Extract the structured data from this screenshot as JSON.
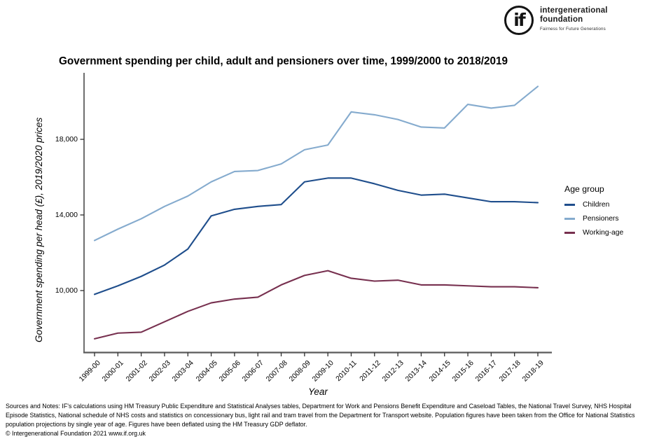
{
  "header": {
    "logo": {
      "monogram": "if",
      "line1": "intergenerational",
      "line2": "foundation",
      "tagline": "Fairness for Future Generations"
    }
  },
  "title": "Government spending per child, adult and pensioners over time, 1999/2000 to 2018/2019",
  "chart_data": {
    "type": "line",
    "title": "Government spending per child, adult and pensioners over time, 1999/2000 to 2018/2019",
    "xlabel": "Year",
    "ylabel": "Government spending per head (£), 2019/2020 prices",
    "categories": [
      "1999-00",
      "2000-01",
      "2001-02",
      "2002-03",
      "2003-04",
      "2004-05",
      "2005-06",
      "2006-07",
      "2007-08",
      "2008-09",
      "2009-10",
      "2010-11",
      "2011-12",
      "2012-13",
      "2013-14",
      "2014-15",
      "2015-16",
      "2016-17",
      "2017-18",
      "2018-19"
    ],
    "y_ticks": [
      10000,
      14000,
      18000
    ],
    "y_tick_labels": [
      "10,000",
      "14,000",
      "18,000"
    ],
    "ylim": [
      6700,
      21300
    ],
    "grid": false,
    "legend_title": "Age group",
    "legend_position": "right",
    "axis_color": "#3a3a3a",
    "series": [
      {
        "name": "Children",
        "color": "#1f4e8c",
        "values": [
          9800,
          10250,
          10750,
          11350,
          12200,
          13950,
          14300,
          14450,
          14550,
          15750,
          15950,
          15950,
          15650,
          15300,
          15050,
          15100,
          14900,
          14700,
          14700,
          14650
        ]
      },
      {
        "name": "Pensioners",
        "color": "#85abce",
        "values": [
          12650,
          13250,
          13800,
          14450,
          15000,
          15750,
          16300,
          16350,
          16700,
          17450,
          17700,
          19450,
          19300,
          19050,
          18650,
          18600,
          19850,
          19650,
          19800,
          20800
        ]
      },
      {
        "name": "Working-age",
        "color": "#77304f",
        "values": [
          7450,
          7750,
          7800,
          8350,
          8900,
          9350,
          9550,
          9650,
          10300,
          10800,
          11050,
          10650,
          10500,
          10550,
          10300,
          10300,
          10250,
          10200,
          10200,
          10150
        ]
      }
    ]
  },
  "footer": {
    "sources": "Sources and Notes: IF's calculations using HM Treasury Public Expenditure and Statistical Analyses tables, Department for Work and Pensions Benefit Expenditure and Caseload Tables, the National Travel Survey, NHS Hospital Episode Statistics, National schedule of NHS costs and statistics on concessionary bus, light rail and tram travel from the Department for Transport website. Population figures have been taken from the Office for National Statistics population projections by single year of age. Figures have been deflated using the HM Treasury GDP deflator.",
    "copyright": "© Intergenerational Foundation 2021 www.if.org.uk"
  }
}
